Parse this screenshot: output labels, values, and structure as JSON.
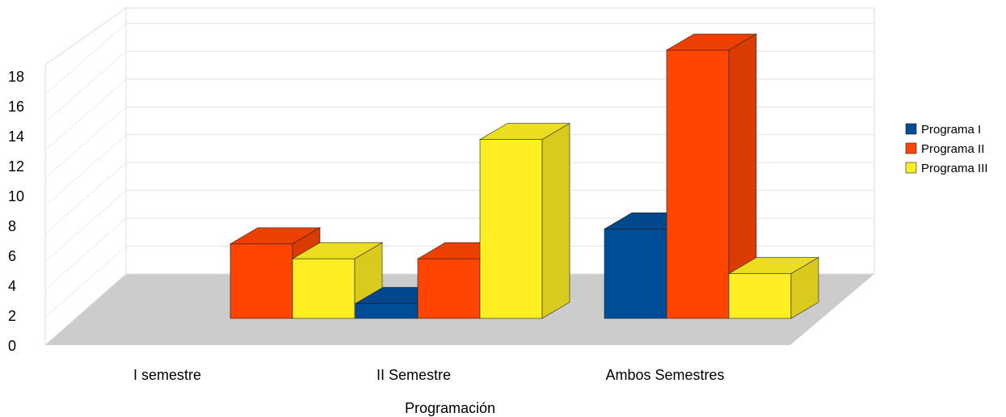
{
  "chart_data": {
    "type": "bar",
    "title": "",
    "xlabel": "Programación",
    "ylabel": "",
    "categories": [
      "I semestre",
      "II Semestre",
      "Ambos Semestres"
    ],
    "series": [
      {
        "name": "Programa I",
        "values": [
          0,
          1,
          6
        ],
        "color": "#004c99"
      },
      {
        "name": "Programa II",
        "values": [
          5,
          4,
          18
        ],
        "color": "#ff4500"
      },
      {
        "name": "Programa III",
        "values": [
          4,
          12,
          3
        ],
        "color": "#ffee22"
      }
    ],
    "ylim": [
      0,
      18
    ],
    "yticks": [
      0,
      2,
      4,
      6,
      8,
      10,
      12,
      14,
      16,
      18
    ],
    "grid": true,
    "legend_position": "right",
    "floor_color": "#cccccc"
  }
}
